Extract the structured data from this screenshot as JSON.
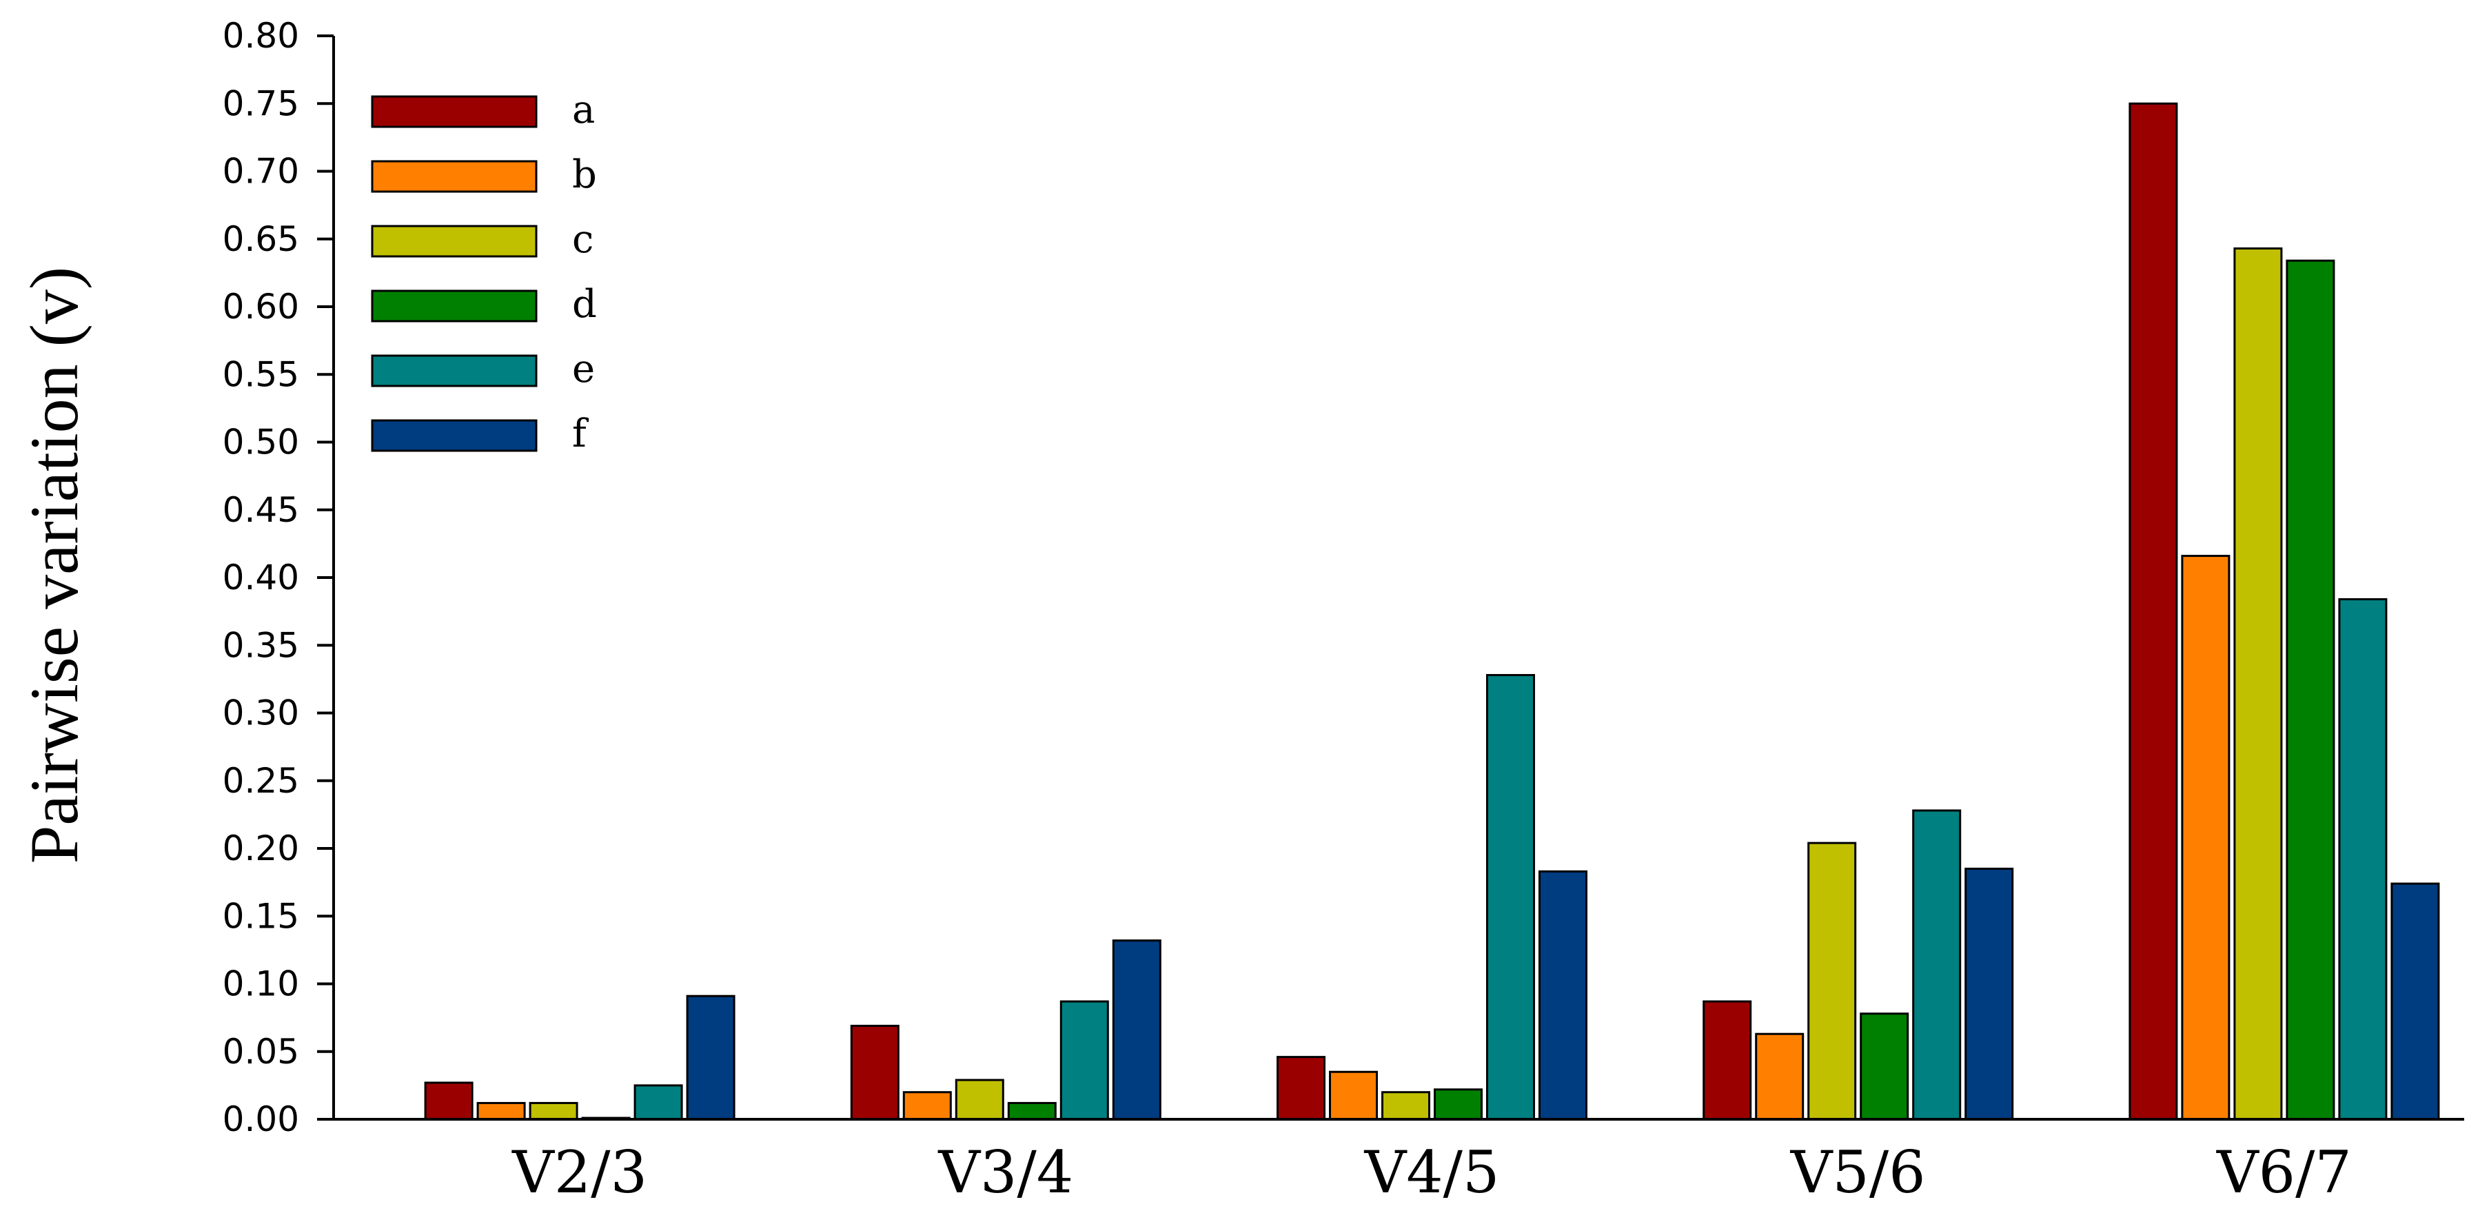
{
  "chart_data": {
    "type": "bar",
    "title": "",
    "xlabel": "",
    "ylabel": "Pairwise variation (v)",
    "ylim": [
      0,
      0.8
    ],
    "y_ticks": [
      "0.00",
      "0.05",
      "0.10",
      "0.15",
      "0.20",
      "0.25",
      "0.30",
      "0.35",
      "0.40",
      "0.45",
      "0.50",
      "0.55",
      "0.60",
      "0.65",
      "0.70",
      "0.75",
      "0.80"
    ],
    "categories": [
      "V2/3",
      "V3/4",
      "V4/5",
      "V5/6",
      "V6/7"
    ],
    "grid": false,
    "legend_position": "top-left",
    "series": [
      {
        "name": "a",
        "color": "#9b0000",
        "values": [
          0.027,
          0.069,
          0.046,
          0.087,
          0.75
        ]
      },
      {
        "name": "b",
        "color": "#ff8000",
        "values": [
          0.012,
          0.02,
          0.035,
          0.063,
          0.416
        ]
      },
      {
        "name": "c",
        "color": "#c0c000",
        "values": [
          0.012,
          0.029,
          0.02,
          0.204,
          0.643
        ]
      },
      {
        "name": "d",
        "color": "#008000",
        "values": [
          0.001,
          0.012,
          0.022,
          0.078,
          0.634
        ]
      },
      {
        "name": "e",
        "color": "#008080",
        "values": [
          0.025,
          0.087,
          0.328,
          0.228,
          0.384
        ]
      },
      {
        "name": "f",
        "color": "#003c80",
        "values": [
          0.091,
          0.132,
          0.183,
          0.185,
          0.174
        ]
      }
    ]
  }
}
